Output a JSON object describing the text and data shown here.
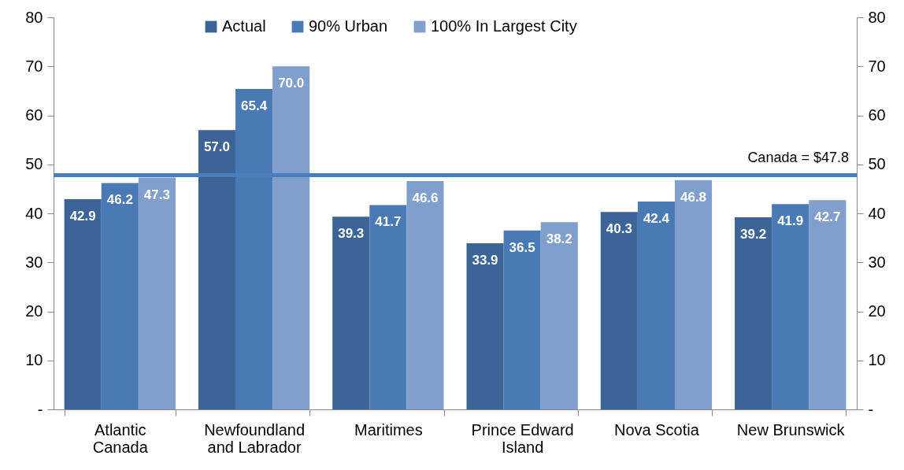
{
  "chart_data": {
    "type": "bar",
    "categories": [
      "Atlantic Canada",
      "Newfoundland and Labrador",
      "Maritimes",
      "Prince Edward Island",
      "Nova Scotia",
      "New Brunswick"
    ],
    "series": [
      {
        "name": "Actual",
        "color": "#3c6497",
        "values": [
          42.9,
          57.0,
          39.3,
          33.9,
          40.3,
          39.2
        ],
        "value_labels": [
          "42.9",
          "57.0",
          "39.3",
          "33.9",
          "40.3",
          "39.2"
        ]
      },
      {
        "name": "90% Urban",
        "color": "#4a7ab5",
        "values": [
          46.2,
          65.4,
          41.7,
          36.5,
          42.4,
          41.9
        ],
        "value_labels": [
          "46.2",
          "65.4",
          "41.7",
          "36.5",
          "42.4",
          "41.9"
        ]
      },
      {
        "name": "100% In Largest City",
        "color": "#809fcc",
        "values": [
          47.3,
          70.0,
          46.6,
          38.2,
          46.8,
          42.7
        ],
        "value_labels": [
          "47.3",
          "70.0",
          "46.6",
          "38.2",
          "46.8",
          "42.7"
        ]
      }
    ],
    "ylim": [
      0,
      80
    ],
    "yticks": [
      {
        "value": 0,
        "label": "-"
      },
      10,
      20,
      30,
      40,
      50,
      60,
      70,
      80
    ],
    "y2lim": [
      0,
      80
    ],
    "y2ticks": [
      {
        "value": 0,
        "label": "-"
      },
      10,
      20,
      30,
      40,
      50,
      60,
      70,
      80
    ],
    "ref_lines": [
      {
        "axis": "y",
        "value": 47.8,
        "label": "Canada = $47.8",
        "color": "#4a7ebb"
      }
    ],
    "legend": "top",
    "grid": false
  }
}
